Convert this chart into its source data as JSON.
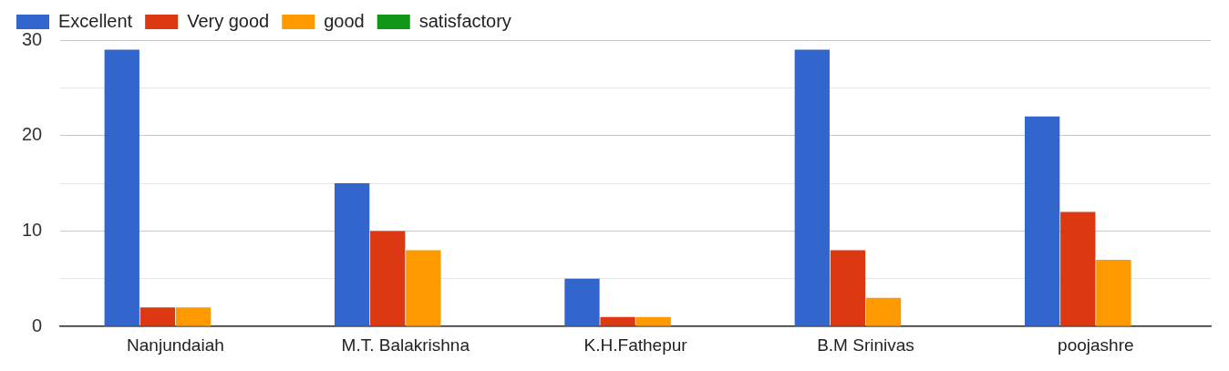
{
  "chart_data": {
    "type": "bar",
    "categories": [
      "Nanjundaiah",
      "M.T. Balakrishna",
      "K.H.Fathepur",
      "B.M Srinivas",
      "poojashre"
    ],
    "series": [
      {
        "name": "Excellent",
        "color": "#3366cc",
        "values": [
          29,
          15,
          5,
          29,
          22
        ]
      },
      {
        "name": "Very good",
        "color": "#dc3912",
        "values": [
          2,
          10,
          1,
          8,
          12
        ]
      },
      {
        "name": "good",
        "color": "#ff9900",
        "values": [
          2,
          8,
          1,
          3,
          7
        ]
      },
      {
        "name": "satisfactory",
        "color": "#109618",
        "values": [
          0,
          0,
          0,
          0,
          0
        ]
      }
    ],
    "ylim": [
      0,
      30
    ],
    "yticks": [
      0,
      {
        "value": 5,
        "label": null
      },
      10,
      {
        "value": 15,
        "label": null
      },
      20,
      {
        "value": 25,
        "label": null
      },
      30
    ],
    "grid": "y",
    "legend": "top left"
  }
}
